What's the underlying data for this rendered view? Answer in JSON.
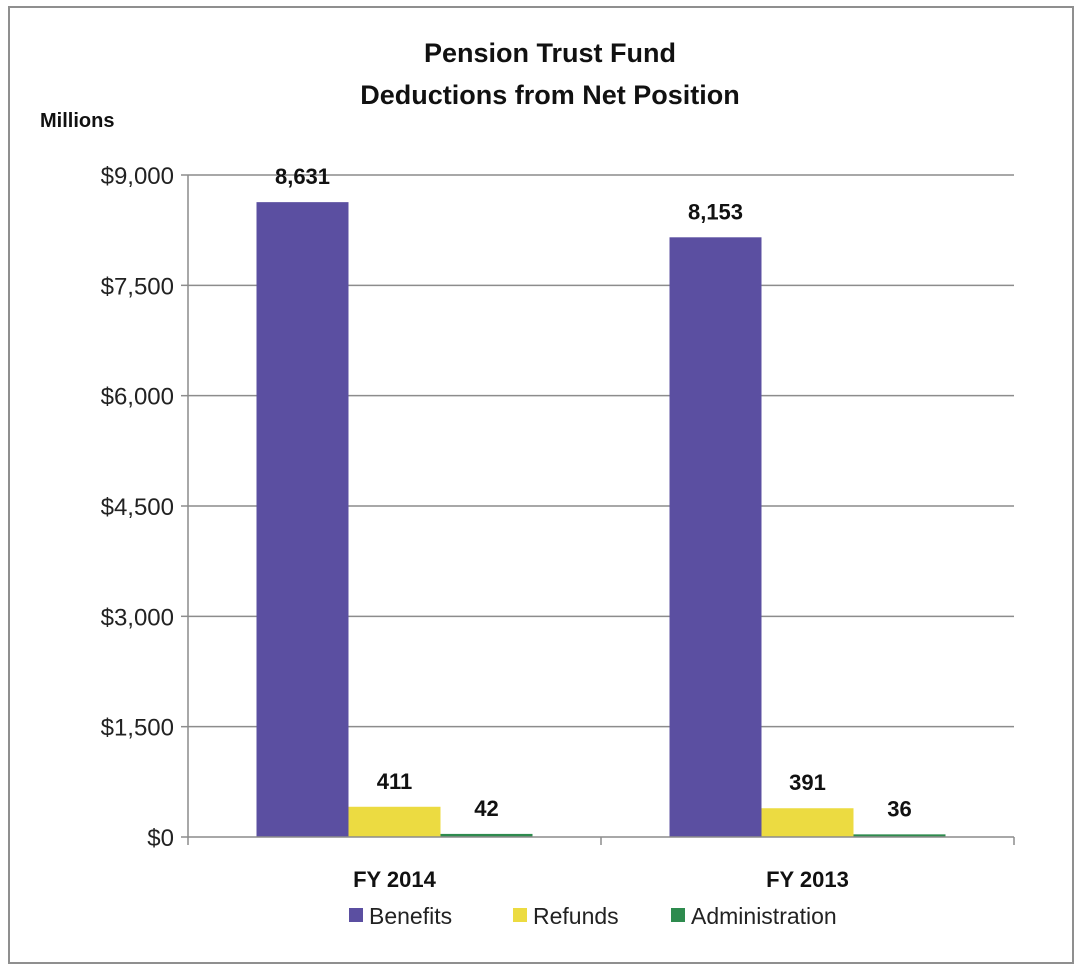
{
  "chart_data": {
    "type": "bar",
    "title_lines": [
      "Pension Trust Fund",
      "Deductions from Net Position"
    ],
    "unit_label": "Millions",
    "categories": [
      "FY 2014",
      "FY 2013"
    ],
    "series": [
      {
        "name": "Benefits",
        "values": [
          8631,
          8153
        ],
        "labels": [
          "8,631",
          "8,153"
        ],
        "color": "#5b4fa1"
      },
      {
        "name": "Refunds",
        "values": [
          411,
          391
        ],
        "labels": [
          "411",
          "391"
        ],
        "color": "#ecdb41"
      },
      {
        "name": "Administration",
        "values": [
          42,
          36
        ],
        "labels": [
          "42",
          "36"
        ],
        "color": "#2e8b4e"
      }
    ],
    "ylim": [
      0,
      9000
    ],
    "yticks": [
      0,
      1500,
      3000,
      4500,
      6000,
      7500,
      9000
    ],
    "ytick_labels": [
      "$0",
      "$1,500",
      "$3,000",
      "$4,500",
      "$6,000",
      "$7,500",
      "$9,000"
    ],
    "grid": true,
    "legend_position": "bottom",
    "gridline_color": "#8c8c8c"
  }
}
